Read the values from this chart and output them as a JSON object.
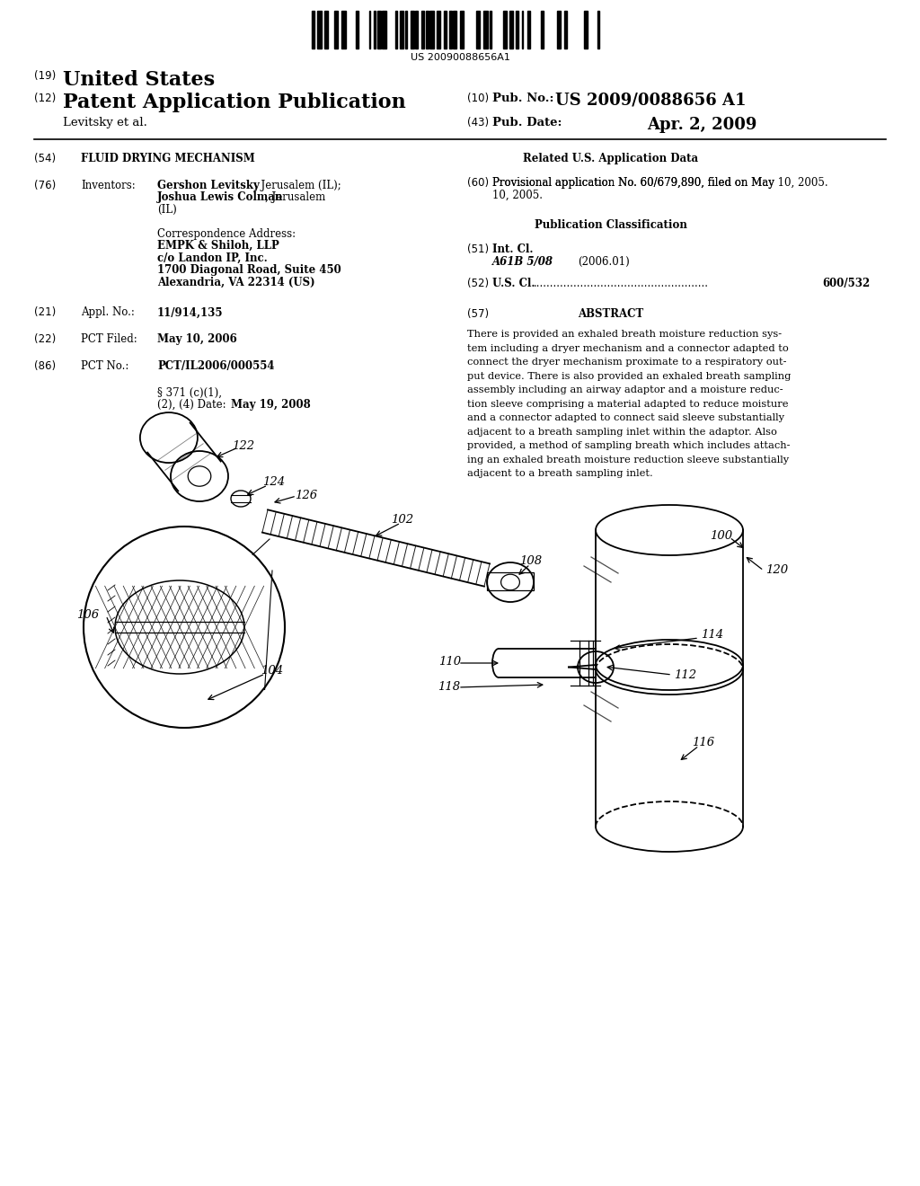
{
  "background_color": "#ffffff",
  "barcode_text": "US 20090088656A1",
  "title_54": "FLUID DRYING MECHANISM",
  "inventors": "Gershon Levitsky, Jerusalem (IL); Joshua Lewis Colman, Jerusalem (IL)",
  "corr_addr": [
    "EMPK & Shiloh, LLP",
    "c/o Landon IP, Inc.",
    "1700 Diagonal Road, Suite 450",
    "Alexandria, VA 22314 (US)"
  ],
  "appl_no": "11/914,135",
  "pct_filed": "May 10, 2006",
  "pct_no": "PCT/IL2006/000554",
  "date_371": "May 19, 2008",
  "prov_app": "Provisional application No. 60/679,890, filed on May 10, 2005.",
  "intl_cl": "A61B 5/08",
  "intl_cl_date": "(2006.01)",
  "us_cl": "600/532",
  "abstract": "There is provided an exhaled breath moisture reduction system including a dryer mechanism and a connector adapted to connect the dryer mechanism proximate to a respiratory output device. There is also provided an exhaled breath sampling assembly including an airway adaptor and a moisture reduction sleeve comprising a material adapted to reduce moisture and a connector adapted to connect said sleeve substantially adjacent to a breath sampling inlet within the adaptor. Also provided, a method of sampling breath which includes attaching an exhaled breath moisture reduction sleeve substantially adjacent to a breath sampling inlet.",
  "pub_no": "US 2009/0088656 A1",
  "pub_date": "Apr. 2, 2009",
  "inventor_last": "Levitsky et al."
}
